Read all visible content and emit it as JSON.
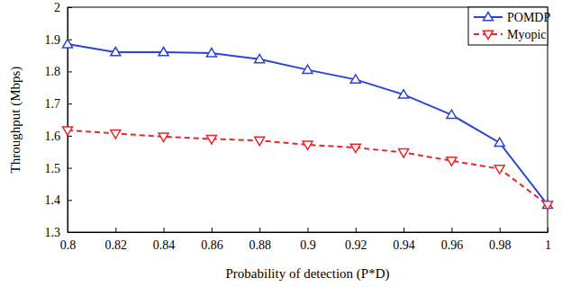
{
  "chart_data": {
    "type": "line",
    "x_label": "Probability of detection (P*D)",
    "y_label": "Throughput (Mbps)",
    "x": [
      0.8,
      0.82,
      0.84,
      0.86,
      0.88,
      0.9,
      0.92,
      0.94,
      0.96,
      0.98,
      1
    ],
    "series": [
      {
        "name": "POMDP",
        "color": "#2a44d6",
        "marker": "triangle-up",
        "line_style": "solid",
        "values": [
          1.885,
          1.86,
          1.86,
          1.857,
          1.838,
          1.805,
          1.775,
          1.728,
          1.665,
          1.578,
          1.385
        ]
      },
      {
        "name": "Myopic",
        "color": "#e8262b",
        "marker": "triangle-down",
        "line_style": "dashed",
        "values": [
          1.617,
          1.607,
          1.597,
          1.59,
          1.585,
          1.572,
          1.563,
          1.548,
          1.522,
          1.497,
          1.385
        ]
      }
    ],
    "xlim": [
      0.8,
      1
    ],
    "xticks": [
      0.8,
      0.82,
      0.84,
      0.86,
      0.88,
      0.9,
      0.92,
      0.94,
      0.96,
      0.98,
      1
    ],
    "ylim": [
      1.3,
      2
    ],
    "yticks": [
      1.3,
      1.4,
      1.5,
      1.6,
      1.7,
      1.8,
      1.9,
      2
    ],
    "grid": false,
    "legend": "upper right"
  }
}
